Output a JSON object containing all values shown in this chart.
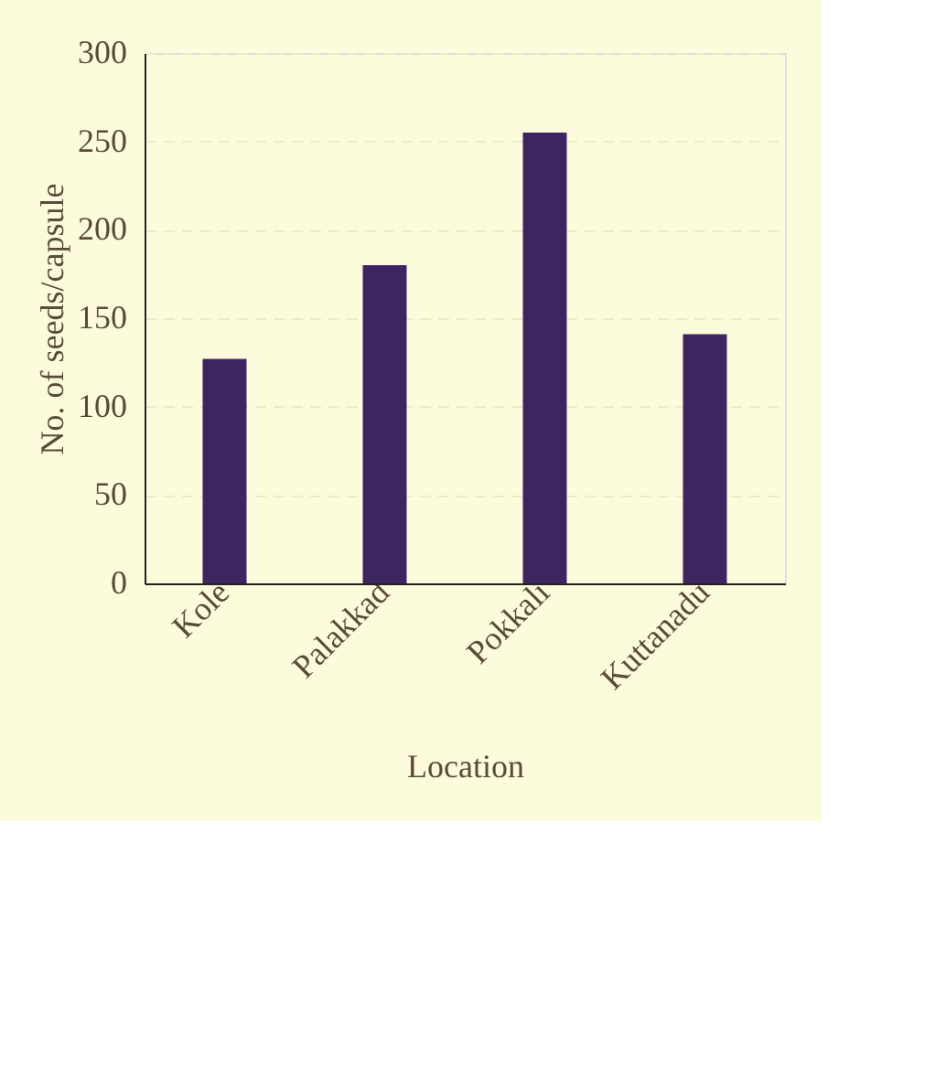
{
  "chart_data": {
    "type": "bar",
    "xlabel": "Location",
    "ylabel": "No. of seeds/capsule",
    "categories": [
      "Kole",
      "Palakkad",
      "Pokkali",
      "Kuttanadu"
    ],
    "values": [
      127,
      180,
      255,
      141
    ],
    "color": "#3f2463",
    "ylim": [
      0,
      300
    ],
    "yticks": [
      0,
      50,
      100,
      150,
      200,
      250,
      300
    ],
    "grid": "y"
  }
}
